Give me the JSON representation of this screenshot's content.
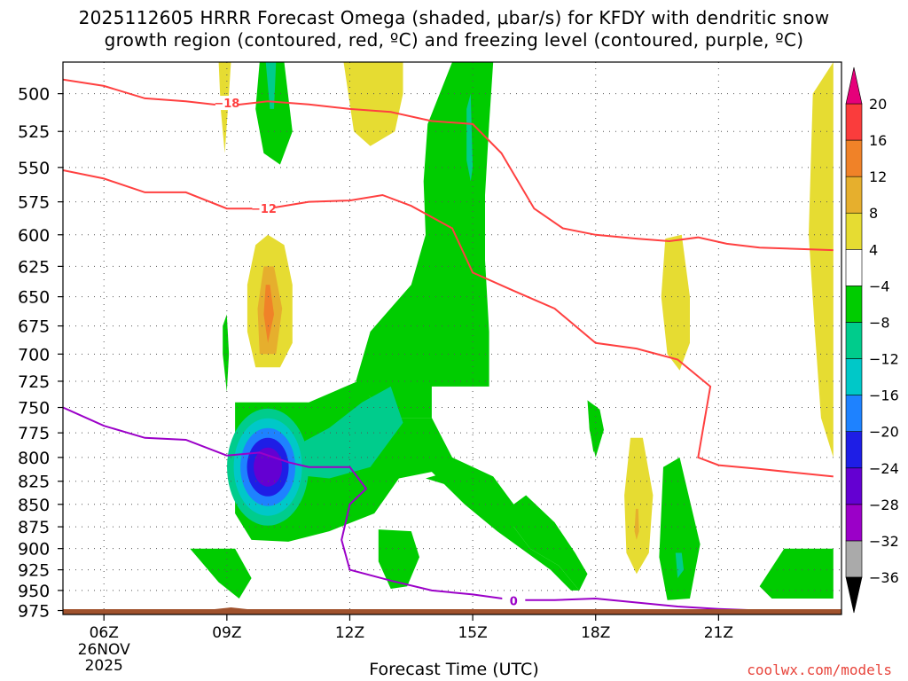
{
  "title_line1": "2025112605 HRRR Forecast Omega (shaded, μbar/s) for KFDY with dendritic snow",
  "title_line2": "growth region (contoured, red, ºC) and freezing level (contoured, purple, ºC)",
  "credit": "coolwx.com/models",
  "chart_data": {
    "type": "heatmap",
    "title": "2025112605 HRRR Forecast Omega (shaded, μbar/s) for KFDY with dendritic snow growth region (contoured, red, ºC) and freezing level (contoured, purple, ºC)",
    "xlabel": "Forecast Time (UTC)",
    "ylabel": "",
    "x_range_hours": [
      5,
      24
    ],
    "y_range_hPa": [
      480,
      980
    ],
    "y_scale": "log-pressure (inverted)",
    "grid": "dotted",
    "x_ticks": [
      {
        "hour": 6,
        "label": "06Z",
        "date": "26NOV",
        "year": "2025"
      },
      {
        "hour": 9,
        "label": "09Z"
      },
      {
        "hour": 12,
        "label": "12Z"
      },
      {
        "hour": 15,
        "label": "15Z"
      },
      {
        "hour": 18,
        "label": "18Z"
      },
      {
        "hour": 21,
        "label": "21Z"
      }
    ],
    "y_ticks": [
      500,
      525,
      550,
      575,
      600,
      625,
      650,
      675,
      700,
      725,
      750,
      775,
      800,
      825,
      850,
      875,
      900,
      925,
      950,
      975
    ],
    "colorbar": {
      "levels": [
        -36,
        -32,
        -28,
        -24,
        -20,
        -16,
        -12,
        -8,
        -4,
        4,
        8,
        12,
        16,
        20
      ],
      "colors": [
        "#aaaaaa",
        "#9b00c8",
        "#6400d2",
        "#1e1ee6",
        "#1e82ff",
        "#00c8c8",
        "#00cc8c",
        "#00cc00",
        "#ffffff",
        "#e6dc32",
        "#e6af2d",
        "#f08228",
        "#fa3c3c",
        "#f00082"
      ],
      "min_extend_color": "#000000",
      "max_extend_color": "#e6007a"
    },
    "omega_regions": [
      {
        "name": "green-column",
        "band": -8,
        "polygon": [
          [
            12.15,
            725
          ],
          [
            12.5,
            680
          ],
          [
            13.5,
            640
          ],
          [
            13.85,
            600
          ],
          [
            13.8,
            560
          ],
          [
            13.9,
            520
          ],
          [
            14.5,
            480
          ],
          [
            15.5,
            480
          ],
          [
            15.4,
            520
          ],
          [
            15.3,
            570
          ],
          [
            15.3,
            620
          ],
          [
            15.4,
            680
          ],
          [
            15.4,
            730
          ],
          [
            14.0,
            730
          ],
          [
            14.0,
            760
          ],
          [
            13.0,
            760
          ],
          [
            12.5,
            740
          ]
        ]
      },
      {
        "name": "green-lower",
        "band": -8,
        "polygon": [
          [
            9.2,
            745
          ],
          [
            11.0,
            745
          ],
          [
            12.2,
            725
          ],
          [
            12.5,
            740
          ],
          [
            13.0,
            760
          ],
          [
            14.0,
            760
          ],
          [
            14.5,
            800
          ],
          [
            15.5,
            820
          ],
          [
            16.0,
            850
          ],
          [
            16.0,
            875
          ],
          [
            16.4,
            900
          ],
          [
            17.1,
            920
          ],
          [
            17.6,
            950
          ],
          [
            17.4,
            950
          ],
          [
            16.9,
            925
          ],
          [
            15.6,
            880
          ],
          [
            14.8,
            850
          ],
          [
            14.0,
            815
          ],
          [
            13.2,
            822
          ],
          [
            12.6,
            860
          ],
          [
            11.5,
            880
          ],
          [
            10.5,
            892
          ],
          [
            9.6,
            890
          ],
          [
            9.2,
            860
          ]
        ]
      },
      {
        "name": "green-right-lower",
        "band": -8,
        "polygon": [
          [
            13.85,
            822
          ],
          [
            14.8,
            810
          ],
          [
            15.5,
            822
          ],
          [
            16.0,
            850
          ],
          [
            16.3,
            840
          ],
          [
            17.0,
            870
          ],
          [
            17.5,
            905
          ],
          [
            17.8,
            930
          ],
          [
            17.6,
            950
          ],
          [
            17.1,
            920
          ],
          [
            16.4,
            900
          ],
          [
            16.0,
            875
          ],
          [
            15.4,
            845
          ],
          [
            14.6,
            832
          ]
        ]
      },
      {
        "name": "green-top-cell",
        "band": -8,
        "polygon": [
          [
            9.8,
            480
          ],
          [
            10.4,
            480
          ],
          [
            10.6,
            525
          ],
          [
            10.3,
            548
          ],
          [
            9.9,
            540
          ],
          [
            9.7,
            510
          ]
        ]
      },
      {
        "name": "teal-top-cell",
        "band": -12,
        "polygon": [
          [
            9.95,
            480
          ],
          [
            10.2,
            480
          ],
          [
            10.15,
            510
          ],
          [
            10.05,
            510
          ]
        ]
      },
      {
        "name": "teal-lower",
        "band": -12,
        "polygon": [
          [
            10.6,
            790
          ],
          [
            11.5,
            770
          ],
          [
            12.3,
            745
          ],
          [
            13.0,
            730
          ],
          [
            13.3,
            765
          ],
          [
            12.5,
            810
          ],
          [
            11.5,
            822
          ],
          [
            10.6,
            818
          ]
        ]
      },
      {
        "name": "teal-column",
        "band": -12,
        "polygon": [
          [
            14.85,
            510
          ],
          [
            14.95,
            500
          ],
          [
            15.0,
            550
          ],
          [
            14.95,
            560
          ],
          [
            14.85,
            545
          ]
        ]
      },
      {
        "name": "green-sliver",
        "band": -8,
        "polygon": [
          [
            8.9,
            675
          ],
          [
            9.0,
            665
          ],
          [
            9.05,
            700
          ],
          [
            9.0,
            735
          ],
          [
            8.9,
            700
          ]
        ]
      },
      {
        "name": "green-right-mid",
        "band": -8,
        "polygon": [
          [
            17.8,
            743
          ],
          [
            18.1,
            752
          ],
          [
            18.2,
            772
          ],
          [
            18.0,
            800
          ],
          [
            17.85,
            772
          ]
        ]
      },
      {
        "name": "green-17z-cell",
        "band": -8,
        "polygon": [
          [
            17.85,
            745
          ],
          [
            18.05,
            750
          ],
          [
            18.1,
            775
          ],
          [
            17.95,
            795
          ],
          [
            17.85,
            770
          ]
        ]
      },
      {
        "name": "green-sw-cell",
        "band": -8,
        "polygon": [
          [
            8.1,
            900
          ],
          [
            9.2,
            900
          ],
          [
            9.6,
            935
          ],
          [
            9.3,
            960
          ],
          [
            8.8,
            940
          ]
        ]
      },
      {
        "name": "green-13z-cell",
        "band": -8,
        "polygon": [
          [
            12.7,
            878
          ],
          [
            13.5,
            880
          ],
          [
            13.7,
            910
          ],
          [
            13.4,
            945
          ],
          [
            13.0,
            948
          ],
          [
            12.7,
            915
          ]
        ]
      },
      {
        "name": "green-20z-cell",
        "band": -8,
        "polygon": [
          [
            19.65,
            810
          ],
          [
            20.05,
            800
          ],
          [
            20.55,
            895
          ],
          [
            20.3,
            960
          ],
          [
            19.75,
            962
          ],
          [
            19.55,
            910
          ]
        ]
      },
      {
        "name": "teal-20z-cell",
        "band": -12,
        "polygon": [
          [
            19.95,
            905
          ],
          [
            20.1,
            905
          ],
          [
            20.15,
            925
          ],
          [
            20.0,
            935
          ]
        ]
      },
      {
        "name": "green-right-edge",
        "band": -8,
        "polygon": [
          [
            22.0,
            945
          ],
          [
            22.6,
            900
          ],
          [
            23.8,
            900
          ],
          [
            23.8,
            960
          ],
          [
            22.3,
            960
          ]
        ]
      }
    ],
    "omega_cores": {
      "band": -28,
      "center": [
        10.0,
        810
      ],
      "rings": [
        -12,
        -16,
        -20,
        -24,
        -28
      ]
    },
    "positive_regions": [
      {
        "name": "yellow-left-top",
        "band": 4,
        "polygon": [
          [
            8.8,
            480
          ],
          [
            9.1,
            480
          ],
          [
            9.05,
            500
          ],
          [
            8.95,
            540
          ],
          [
            8.85,
            510
          ]
        ]
      },
      {
        "name": "yellow-12z-top",
        "band": 4,
        "polygon": [
          [
            11.85,
            480
          ],
          [
            13.3,
            480
          ],
          [
            13.3,
            500
          ],
          [
            13.1,
            525
          ],
          [
            12.5,
            535
          ],
          [
            12.1,
            525
          ]
        ]
      },
      {
        "name": "yellow-mid",
        "band": 4,
        "polygon": [
          [
            10.0,
            600
          ],
          [
            10.4,
            608
          ],
          [
            10.6,
            640
          ],
          [
            10.6,
            690
          ],
          [
            10.3,
            712
          ],
          [
            9.7,
            712
          ],
          [
            9.5,
            680
          ],
          [
            9.5,
            640
          ],
          [
            9.7,
            608
          ]
        ]
      },
      {
        "name": "orange-mid",
        "band": 8,
        "polygon": [
          [
            9.9,
            625
          ],
          [
            10.15,
            625
          ],
          [
            10.35,
            660
          ],
          [
            10.2,
            700
          ],
          [
            9.8,
            700
          ],
          [
            9.75,
            660
          ]
        ]
      },
      {
        "name": "orange-core",
        "band": 12,
        "polygon": [
          [
            9.95,
            640
          ],
          [
            10.05,
            640
          ],
          [
            10.15,
            665
          ],
          [
            10.0,
            690
          ],
          [
            9.9,
            665
          ]
        ]
      },
      {
        "name": "yellow-19z",
        "band": 4,
        "polygon": [
          [
            18.85,
            780
          ],
          [
            19.15,
            780
          ],
          [
            19.4,
            840
          ],
          [
            19.3,
            905
          ],
          [
            19.0,
            930
          ],
          [
            18.75,
            905
          ],
          [
            18.7,
            840
          ]
        ]
      },
      {
        "name": "yellow-20z",
        "band": 4,
        "polygon": [
          [
            19.7,
            603
          ],
          [
            20.1,
            600
          ],
          [
            20.3,
            650
          ],
          [
            20.3,
            690
          ],
          [
            20.05,
            715
          ],
          [
            19.75,
            700
          ],
          [
            19.6,
            650
          ]
        ]
      },
      {
        "name": "orange-19z",
        "band": 8,
        "polygon": [
          [
            18.98,
            855
          ],
          [
            19.04,
            855
          ],
          [
            19.06,
            880
          ],
          [
            19.0,
            890
          ],
          [
            18.95,
            880
          ]
        ]
      },
      {
        "name": "yellow-right-edge",
        "band": 4,
        "polygon": [
          [
            23.3,
            500
          ],
          [
            23.8,
            480
          ],
          [
            23.8,
            800
          ],
          [
            23.5,
            760
          ],
          [
            23.35,
            680
          ],
          [
            23.2,
            600
          ]
        ]
      }
    ],
    "contours": [
      {
        "name": "dgz-minus18-upper",
        "color": "#ff4040",
        "label": "−18",
        "label_at": [
          9.0,
          506
        ],
        "points": [
          [
            5,
            491
          ],
          [
            6,
            495
          ],
          [
            7,
            503
          ],
          [
            8,
            505
          ],
          [
            9,
            508
          ],
          [
            10,
            505
          ],
          [
            11,
            507
          ],
          [
            12,
            510
          ],
          [
            13,
            512
          ],
          [
            14,
            518
          ],
          [
            15,
            520
          ],
          [
            15.7,
            540
          ],
          [
            16.5,
            580
          ],
          [
            17.2,
            595
          ],
          [
            18,
            600
          ],
          [
            19,
            603
          ],
          [
            19.8,
            605
          ],
          [
            20.5,
            602
          ],
          [
            21.2,
            607
          ],
          [
            22,
            610
          ],
          [
            23.8,
            612
          ]
        ]
      },
      {
        "name": "dgz-minus12",
        "color": "#ff4040",
        "label": "−12",
        "label_at": [
          9.9,
          580
        ],
        "points": [
          [
            5,
            552
          ],
          [
            6,
            558
          ],
          [
            7,
            568
          ],
          [
            8,
            568
          ],
          [
            9,
            580
          ],
          [
            10,
            580
          ],
          [
            11,
            575
          ],
          [
            12,
            574
          ],
          [
            12.8,
            570
          ],
          [
            13.5,
            578
          ],
          [
            14.5,
            595
          ],
          [
            15.0,
            630
          ],
          [
            16.0,
            645
          ],
          [
            17.0,
            660
          ],
          [
            18.0,
            690
          ],
          [
            19.0,
            695
          ],
          [
            20.0,
            705
          ],
          [
            20.8,
            730
          ],
          [
            20.5,
            800
          ],
          [
            21.0,
            808
          ],
          [
            22.0,
            812
          ],
          [
            23.8,
            820
          ]
        ]
      },
      {
        "name": "freezing-level",
        "color": "#9b00c8",
        "label": "0",
        "label_at": [
          16.0,
          963
        ],
        "points": [
          [
            5,
            750
          ],
          [
            6,
            768
          ],
          [
            7,
            780
          ],
          [
            8,
            782
          ],
          [
            9,
            798
          ],
          [
            9.8,
            795
          ],
          [
            10.5,
            805
          ],
          [
            11.0,
            810
          ],
          [
            12.0,
            810
          ],
          [
            12.4,
            833
          ],
          [
            12.0,
            850
          ],
          [
            11.8,
            890
          ],
          [
            12.0,
            925
          ],
          [
            13.0,
            938
          ],
          [
            14.0,
            950
          ],
          [
            15.0,
            955
          ],
          [
            16.0,
            962
          ],
          [
            17.0,
            962
          ],
          [
            18.0,
            960
          ],
          [
            19.0,
            965
          ],
          [
            20.0,
            970
          ],
          [
            21.0,
            973
          ],
          [
            22.0,
            975
          ],
          [
            23.3,
            977
          ]
        ]
      }
    ],
    "ground_color": "#a0522d"
  }
}
